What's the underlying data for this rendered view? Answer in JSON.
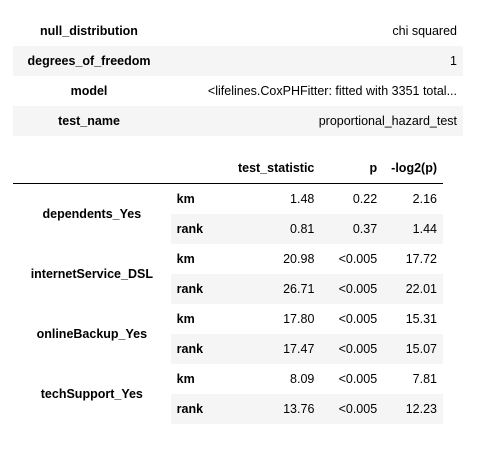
{
  "summary": [
    {
      "key": "null_distribution",
      "value": "chi squared"
    },
    {
      "key": "degrees_of_freedom",
      "value": "1"
    },
    {
      "key": "model",
      "value": "<lifelines.CoxPHFitter: fitted with 3351 total..."
    },
    {
      "key": "test_name",
      "value": "proportional_hazard_test"
    }
  ],
  "results": {
    "columns": [
      "test_statistic",
      "p",
      "-log2(p)"
    ],
    "groups": [
      {
        "covariate": "dependents_Yes",
        "rows": [
          {
            "method": "km",
            "test_statistic": "1.48",
            "p": "0.22",
            "log2p": "2.16"
          },
          {
            "method": "rank",
            "test_statistic": "0.81",
            "p": "0.37",
            "log2p": "1.44"
          }
        ]
      },
      {
        "covariate": "internetService_DSL",
        "rows": [
          {
            "method": "km",
            "test_statistic": "20.98",
            "p": "<0.005",
            "log2p": "17.72"
          },
          {
            "method": "rank",
            "test_statistic": "26.71",
            "p": "<0.005",
            "log2p": "22.01"
          }
        ]
      },
      {
        "covariate": "onlineBackup_Yes",
        "rows": [
          {
            "method": "km",
            "test_statistic": "17.80",
            "p": "<0.005",
            "log2p": "15.31"
          },
          {
            "method": "rank",
            "test_statistic": "17.47",
            "p": "<0.005",
            "log2p": "15.07"
          }
        ]
      },
      {
        "covariate": "techSupport_Yes",
        "rows": [
          {
            "method": "km",
            "test_statistic": "8.09",
            "p": "<0.005",
            "log2p": "7.81"
          },
          {
            "method": "rank",
            "test_statistic": "13.76",
            "p": "<0.005",
            "log2p": "12.23"
          }
        ]
      }
    ]
  }
}
